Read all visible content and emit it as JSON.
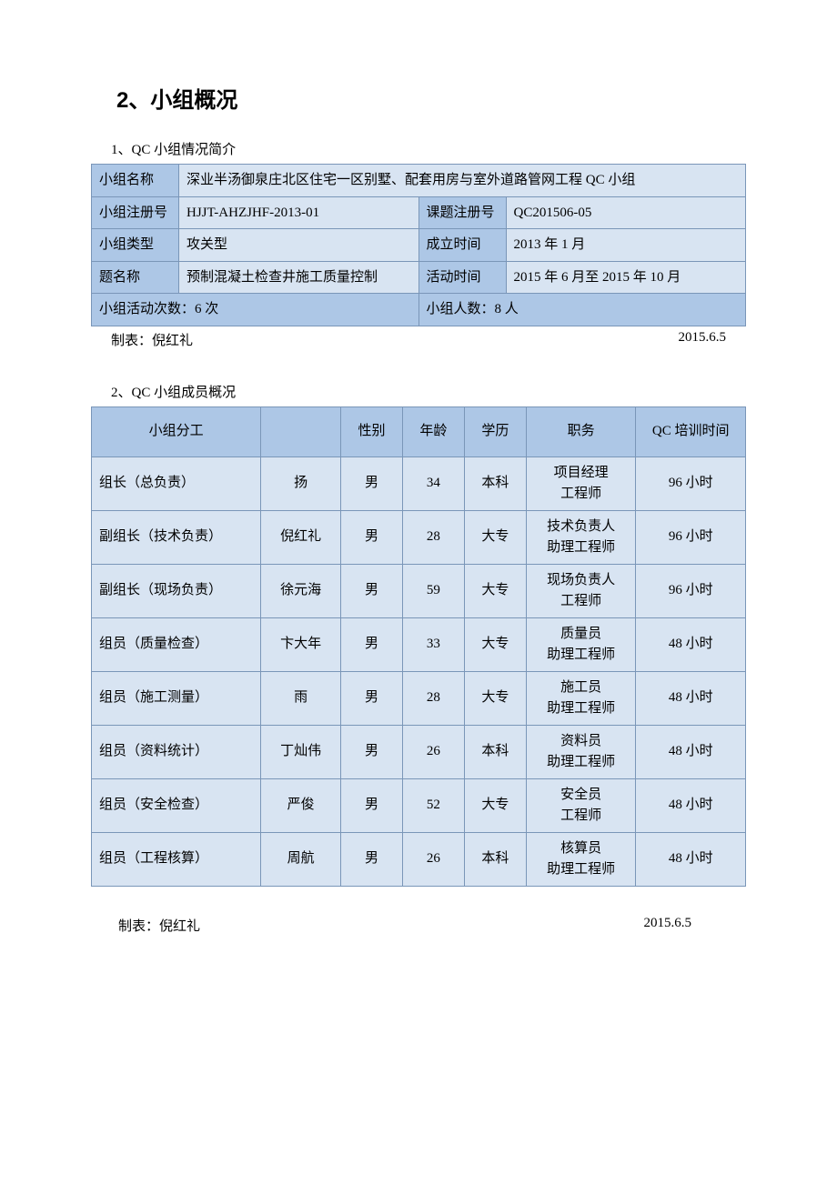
{
  "heading": "2、小组概况",
  "section1_title": "1、QC 小组情况简介",
  "table1": {
    "r1_label": "小组名称",
    "r1_value": "深业半汤御泉庄北区住宅一区别墅、配套用房与室外道路管网工程 QC 小组",
    "r2_label": "小组注册号",
    "r2_value": "HJJT-AHZJHF-2013-01",
    "r2_label2": "课题注册号",
    "r2_value2": "QC201506-05",
    "r3_label": "小组类型",
    "r3_value": "攻关型",
    "r3_label2": "成立时间",
    "r3_value2": "2013 年 1 月",
    "r4_label": "题名称",
    "r4_value": "预制混凝土检查井施工质量控制",
    "r4_label2": "活动时间",
    "r4_value2": "2015 年 6 月至 2015 年 10 月",
    "r5_left": "小组活动次数：6 次",
    "r5_right": "小组人数：8 人"
  },
  "footer1_left": "制表：倪红礼",
  "footer1_right": "2015.6.5",
  "section2_title": "2、QC 小组成员概况",
  "table2": {
    "headers": [
      "小组分工",
      "",
      "性别",
      "年龄",
      "学历",
      "职务",
      "QC 培训时间"
    ],
    "rows": [
      [
        "组长（总负责）",
        "扬",
        "男",
        "34",
        "本科",
        "项目经理\n工程师",
        "96 小时"
      ],
      [
        "副组长（技术负责）",
        "倪红礼",
        "男",
        "28",
        "大专",
        "技术负责人\n助理工程师",
        "96 小时"
      ],
      [
        "副组长（现场负责）",
        "徐元海",
        "男",
        "59",
        "大专",
        "现场负责人\n工程师",
        "96 小时"
      ],
      [
        "组员（质量检查）",
        "卞大年",
        "男",
        "33",
        "大专",
        "质量员\n助理工程师",
        "48 小时"
      ],
      [
        "组员（施工测量）",
        "雨",
        "男",
        "28",
        "大专",
        "施工员\n助理工程师",
        "48 小时"
      ],
      [
        "组员（资料统计）",
        "丁灿伟",
        "男",
        "26",
        "本科",
        "资料员\n助理工程师",
        "48 小时"
      ],
      [
        "组员（安全检查）",
        "严俊",
        "男",
        "52",
        "大专",
        "安全员\n工程师",
        "48 小时"
      ],
      [
        "组员（工程核算）",
        "周航",
        "男",
        "26",
        "本科",
        "核算员\n助理工程师",
        "48 小时"
      ]
    ]
  },
  "footer2_left": "制表：倪红礼",
  "footer2_right": "2015.6.5",
  "colors": {
    "border": "#7a96b8",
    "header_bg": "#adc7e6",
    "cell_bg": "#d8e4f2",
    "page_bg": "#ffffff",
    "text": "#000000"
  },
  "typography": {
    "heading_fontsize": 24,
    "body_fontsize": 15,
    "heading_font": "SimHei",
    "body_font": "SimSun"
  }
}
